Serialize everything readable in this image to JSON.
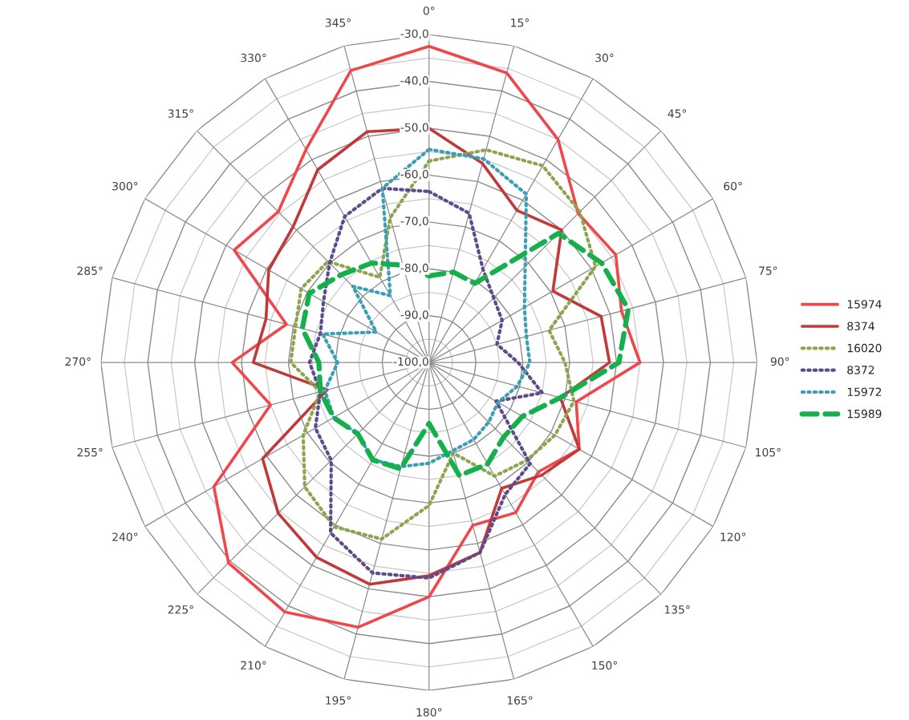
{
  "chart_data": {
    "type": "radar",
    "categories": [
      "0°",
      "15°",
      "30°",
      "45°",
      "60°",
      "75°",
      "90°",
      "105°",
      "120°",
      "135°",
      "150°",
      "165°",
      "180°",
      "195°",
      "210°",
      "225°",
      "240°",
      "255°",
      "270°",
      "285°",
      "300°",
      "315°",
      "330°",
      "345°"
    ],
    "ylim": [
      -100,
      -30
    ],
    "yticks": [
      {
        "value": -100,
        "label": "-100,0"
      },
      {
        "value": -90,
        "label": "-90,0"
      },
      {
        "value": -80,
        "label": "-80,0"
      },
      {
        "value": -70,
        "label": "-70,0"
      },
      {
        "value": -60,
        "label": "-60,0"
      },
      {
        "value": -50,
        "label": "-50,0"
      },
      {
        "value": -40,
        "label": "-40,0"
      },
      {
        "value": -30,
        "label": "-30,0"
      }
    ],
    "grid": true,
    "legend": "right",
    "marker": "none",
    "series": [
      {
        "name": "15974",
        "color": "#f0474a",
        "line_style": "solid",
        "values": [
          -32.5,
          -36,
          -45,
          -55,
          -54,
          -57.5,
          -55,
          -67.5,
          -63,
          -67,
          -63,
          -64,
          -50,
          -41.5,
          -38.5,
          -39.5,
          -47,
          -65,
          -58,
          -68.5,
          -52,
          -54.5,
          -47.5,
          -35.5
        ]
      },
      {
        "name": "8374",
        "color": "#c0393b",
        "line_style": "solid",
        "values": [
          -50,
          -56,
          -62.5,
          -60,
          -69.5,
          -62,
          -61.5,
          -71,
          -63,
          -66,
          -69,
          -58,
          -54.5,
          -51,
          -52,
          -54.5,
          -59,
          -77.5,
          -62.5,
          -64,
          -60.5,
          -59,
          -52.5,
          -49
        ]
      },
      {
        "name": "16020",
        "color": "#8ca54e",
        "line_style": "dotted",
        "values": [
          -57,
          -53,
          -51.5,
          -54.5,
          -59,
          -73.5,
          -71,
          -68,
          -69,
          -70.5,
          -72,
          -80,
          -69.5,
          -61,
          -59.5,
          -62.5,
          -69,
          -76,
          -70.5,
          -70.5,
          -68.5,
          -69.5,
          -79,
          -68
        ]
      },
      {
        "name": "8372",
        "color": "#5f4b8b",
        "line_style": "dotted",
        "values": [
          -63.5,
          -67,
          -77,
          -80.5,
          -82,
          -85,
          -81,
          -75,
          -83.5,
          -69.5,
          -67.5,
          -58,
          -54,
          -53.5,
          -58,
          -70.5,
          -72,
          -76,
          -74.5,
          -76,
          -74,
          -70,
          -64,
          -61.5
        ]
      },
      {
        "name": "15972",
        "color": "#3b9fb5",
        "line_style": "dotted",
        "values": [
          -54.5,
          -55,
          -58.5,
          -71,
          -76.5,
          -78.5,
          -78.5,
          -80.5,
          -83,
          -82,
          -81,
          -80.5,
          -78.5,
          -77,
          -76,
          -78.5,
          -76.5,
          -77,
          -80.5,
          -76.5,
          -87,
          -77,
          -83.5,
          -61.5
        ]
      },
      {
        "name": "15989",
        "color": "#14b04c",
        "line_style": "dashed",
        "values": [
          -81.5,
          -80,
          -80.5,
          -61,
          -57.5,
          -56,
          -59.5,
          -71,
          -77,
          -77.5,
          -75,
          -75,
          -87,
          -76.5,
          -76,
          -78.5,
          -76.5,
          -76,
          -76.5,
          -72,
          -70.5,
          -73.5,
          -75.5,
          -78.5
        ]
      }
    ]
  }
}
